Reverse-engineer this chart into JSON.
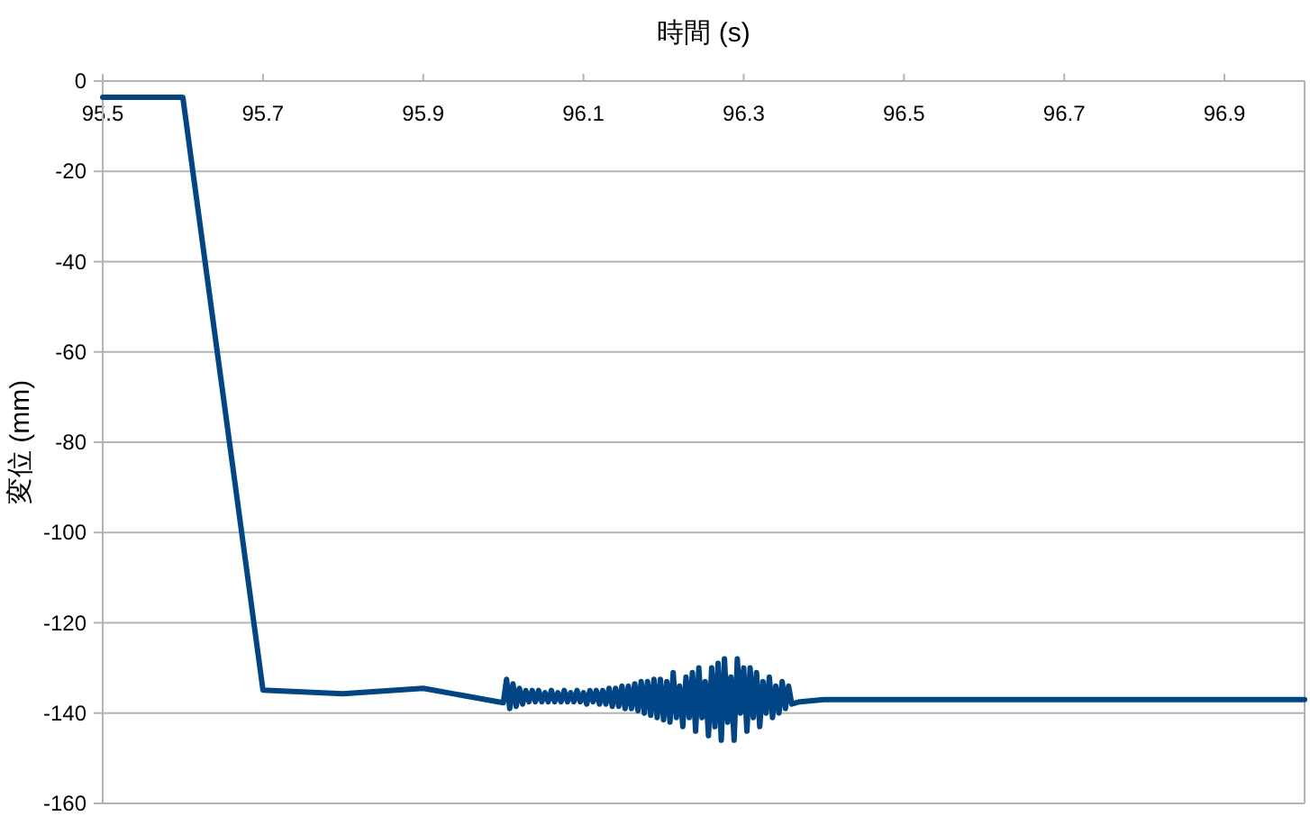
{
  "chart_data": {
    "type": "line",
    "xlabel": "時間 (s)",
    "ylabel": "変位 (mm)",
    "xlim": [
      95.5,
      97.0
    ],
    "xticks": [
      95.5,
      95.7,
      95.9,
      96.1,
      96.3,
      96.5,
      96.7,
      96.9
    ],
    "ylim": [
      -160,
      0
    ],
    "yticks": [
      0,
      -20,
      -40,
      -60,
      -80,
      -100,
      -120,
      -140,
      -160
    ],
    "grid": "y",
    "marker": "none",
    "line_style": "solid",
    "series": [
      {
        "color": "#004586",
        "x": [
          95.5,
          95.6,
          95.7,
          95.8,
          95.9,
          96.0,
          96.004,
          96.008,
          96.012,
          96.016,
          96.02,
          96.024,
          96.028,
          96.032,
          96.036,
          96.04,
          96.044,
          96.048,
          96.052,
          96.056,
          96.06,
          96.064,
          96.068,
          96.072,
          96.076,
          96.08,
          96.084,
          96.088,
          96.092,
          96.096,
          96.1,
          96.104,
          96.108,
          96.112,
          96.116,
          96.12,
          96.124,
          96.128,
          96.132,
          96.136,
          96.14,
          96.144,
          96.148,
          96.152,
          96.156,
          96.16,
          96.164,
          96.168,
          96.172,
          96.176,
          96.18,
          96.184,
          96.188,
          96.192,
          96.196,
          96.2,
          96.204,
          96.208,
          96.212,
          96.216,
          96.22,
          96.224,
          96.228,
          96.232,
          96.236,
          96.24,
          96.244,
          96.248,
          96.252,
          96.256,
          96.26,
          96.264,
          96.268,
          96.272,
          96.276,
          96.28,
          96.284,
          96.288,
          96.292,
          96.296,
          96.3,
          96.304,
          96.308,
          96.312,
          96.316,
          96.32,
          96.324,
          96.328,
          96.332,
          96.336,
          96.34,
          96.344,
          96.348,
          96.352,
          96.356,
          96.36,
          96.37,
          96.4,
          96.5,
          96.6,
          96.7,
          96.8,
          96.9,
          97.0
        ],
        "values": [
          -3.6,
          -3.6,
          -134.9,
          -135.7,
          -134.5,
          -137.7,
          -132.5,
          -139,
          -133.5,
          -138.5,
          -134.5,
          -138,
          -135,
          -137.5,
          -135,
          -137.5,
          -135,
          -137.5,
          -135.5,
          -137.5,
          -135,
          -137.5,
          -135.5,
          -137.5,
          -135,
          -137.5,
          -135.5,
          -137.5,
          -135,
          -137.5,
          -135.5,
          -138,
          -135,
          -137.5,
          -135,
          -138,
          -135,
          -138,
          -134.5,
          -138.5,
          -134.5,
          -138.5,
          -134,
          -139,
          -134,
          -139,
          -133.5,
          -139.5,
          -133,
          -140,
          -133,
          -140.5,
          -132.5,
          -141,
          -132.5,
          -141.5,
          -133,
          -142,
          -131,
          -141,
          -134,
          -143,
          -132,
          -141,
          -131,
          -144,
          -130,
          -141,
          -133,
          -145,
          -130,
          -143,
          -129,
          -146,
          -128,
          -142,
          -132,
          -146,
          -128,
          -140,
          -130,
          -144,
          -130,
          -141,
          -131,
          -143,
          -133,
          -140,
          -132,
          -141,
          -134,
          -140,
          -133,
          -139,
          -134,
          -138,
          -137.5,
          -137,
          -137,
          -137,
          -137,
          -137,
          -137,
          -137
        ]
      }
    ]
  }
}
